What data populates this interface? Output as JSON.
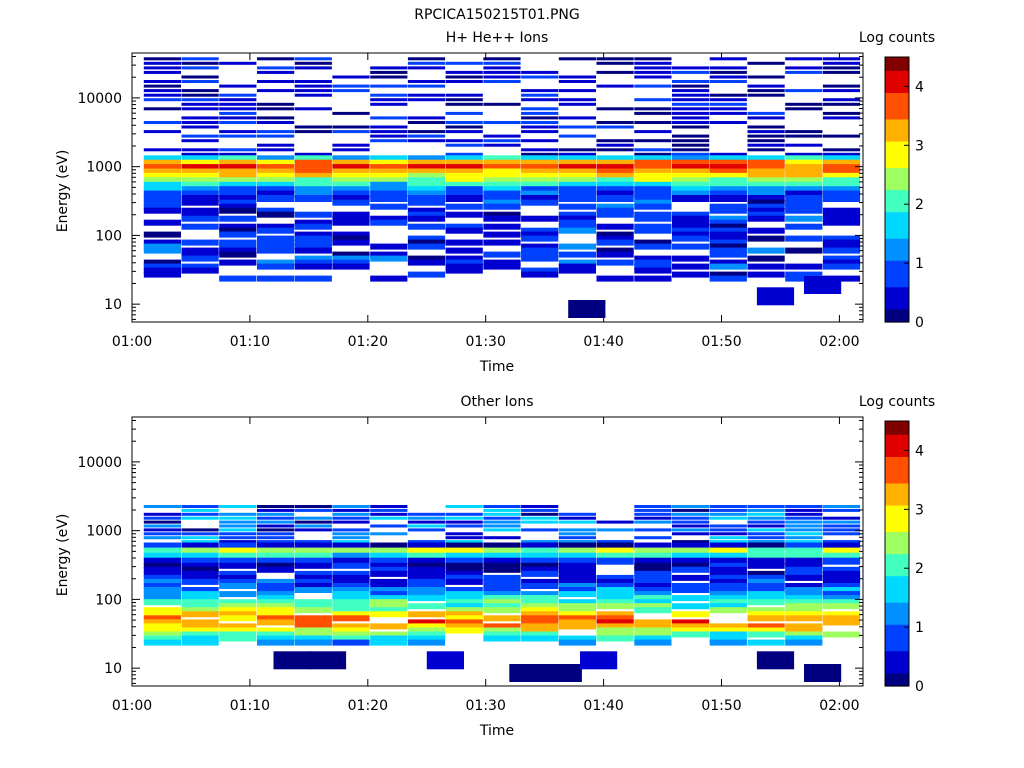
{
  "figure": {
    "filename": "RPCICA150215T01.PNG"
  },
  "colorscale": [
    "#000080",
    "#0000d0",
    "#0040ff",
    "#0090ff",
    "#00d8ff",
    "#40ffc0",
    "#a0ff60",
    "#ffff00",
    "#ffb000",
    "#ff5000",
    "#e00000",
    "#800000"
  ],
  "chart_data": [
    {
      "type": "heatmap",
      "title": "H+ He++ Ions",
      "xlabel": "Time",
      "ylabel": "Energy (eV)",
      "colorbar_label": "Log counts",
      "x_ticks": [
        "01:00",
        "01:10",
        "01:20",
        "01:30",
        "01:40",
        "01:50",
        "02:00"
      ],
      "y_scale": "log",
      "y_ticks": [
        10,
        100,
        1000,
        10000
      ],
      "ylim": [
        5.5,
        45000
      ],
      "time_start": "01:01",
      "time_bin_minutes": 3.2,
      "colorbar_ticks": [
        0,
        1,
        2,
        3,
        4
      ],
      "zlim": [
        0,
        4.5
      ],
      "grid": false,
      "energy_scan": {
        "high": {
          "energy_max_eV": 40000,
          "energy_min_eV": 1400,
          "levels": 22,
          "values": [
            0.1,
            0.6
          ]
        },
        "mid": {
          "energy_max_eV": 1400,
          "energy_min_eV": 320,
          "levels": 10,
          "values": [
            1.7,
            3.3,
            3.8,
            3.4,
            3.0,
            2.4,
            1.8,
            1.2,
            0.8,
            0.6
          ]
        },
        "low": {
          "energy_max_eV": 320,
          "energy_min_eV": 22,
          "levels": 20,
          "values": [
            0.3,
            0.9
          ]
        },
        "dropouts": 0.45
      },
      "extra_points": [
        {
          "time": "01:37",
          "energy_eV": 8.5,
          "value": 0.05
        },
        {
          "time": "01:53",
          "energy_eV": 13,
          "value": 0.3
        },
        {
          "time": "01:57",
          "energy_eV": 19,
          "value": 0.6
        }
      ]
    },
    {
      "type": "heatmap",
      "title": "Other Ions",
      "xlabel": "Time",
      "ylabel": "Energy (eV)",
      "colorbar_label": "Log counts",
      "x_ticks": [
        "01:00",
        "01:10",
        "01:20",
        "01:30",
        "01:40",
        "01:50",
        "02:00"
      ],
      "y_scale": "log",
      "y_ticks": [
        10,
        100,
        1000,
        10000
      ],
      "ylim": [
        5.5,
        45000
      ],
      "time_start": "01:01",
      "time_bin_minutes": 3.2,
      "colorbar_ticks": [
        0,
        1,
        2,
        3,
        4
      ],
      "zlim": [
        0,
        4.5
      ],
      "grid": false,
      "energy_scan": {
        "high": {
          "energy_max_eV": 2400,
          "energy_min_eV": 650,
          "levels": 10,
          "values": [
            0.3,
            1.6
          ]
        },
        "mid": {
          "energy_max_eV": 650,
          "energy_min_eV": 330,
          "levels": 4,
          "values": [
            0.4,
            2.4,
            1.8,
            0.6
          ]
        },
        "low": {
          "energy_max_eV": 330,
          "energy_min_eV": 22,
          "levels": 20,
          "values": [
            0.3,
            0.4,
            0.5,
            0.6,
            0.7,
            0.9,
            1.1,
            1.3,
            1.6,
            1.9,
            2.2,
            2.6,
            3.0,
            3.4,
            3.6,
            3.3,
            2.8,
            2.2,
            1.8,
            1.4
          ]
        },
        "dropouts": 0.2
      },
      "extra_points": [
        {
          "time": "01:12",
          "energy_eV": 13,
          "value": 0.05
        },
        {
          "time": "01:15",
          "energy_eV": 13,
          "value": 0.1
        },
        {
          "time": "01:25",
          "energy_eV": 13,
          "value": 0.3
        },
        {
          "time": "01:32",
          "energy_eV": 8.5,
          "value": 0.05
        },
        {
          "time": "01:35",
          "energy_eV": 8.5,
          "value": 0.05
        },
        {
          "time": "01:38",
          "energy_eV": 13,
          "value": 0.3
        },
        {
          "time": "01:53",
          "energy_eV": 13,
          "value": 0.2
        },
        {
          "time": "01:57",
          "energy_eV": 8.5,
          "value": 0.05
        }
      ]
    }
  ]
}
